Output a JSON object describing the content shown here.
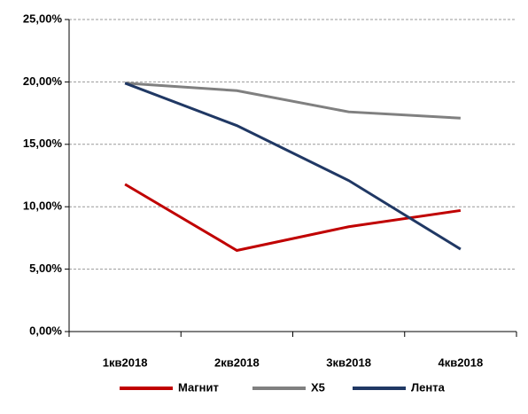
{
  "chart_data": {
    "type": "line",
    "categories": [
      "1кв2018",
      "2кв2018",
      "3кв2018",
      "4кв2018"
    ],
    "series": [
      {
        "name": "Магнит",
        "color": "#c00000",
        "values": [
          11.8,
          6.5,
          8.4,
          9.7
        ]
      },
      {
        "name": "X5",
        "color": "#808080",
        "values": [
          19.9,
          19.3,
          17.6,
          17.1
        ]
      },
      {
        "name": "Лента",
        "color": "#203864",
        "values": [
          19.9,
          16.5,
          12.1,
          6.6
        ]
      }
    ],
    "ylim": [
      0,
      25
    ],
    "yticks": [
      {
        "value": 0,
        "label": "0,00%"
      },
      {
        "value": 5,
        "label": "5,00%"
      },
      {
        "value": 10,
        "label": "10,00%"
      },
      {
        "value": 15,
        "label": "15,00%"
      },
      {
        "value": 20,
        "label": "20,00%"
      },
      {
        "value": 25,
        "label": "25,00%"
      }
    ],
    "grid": true,
    "legend": "bottom"
  }
}
